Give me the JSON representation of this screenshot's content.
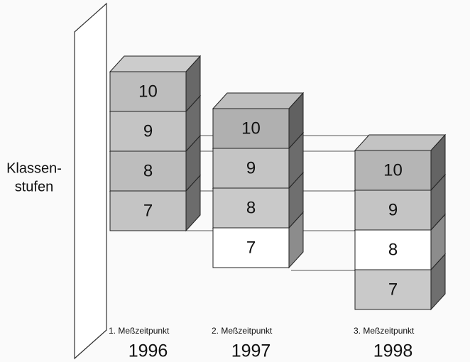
{
  "axis_label": [
    "Klassen-",
    "stufen"
  ],
  "columns": [
    {
      "label": "1. Meßzeitpunkt",
      "year": "1996",
      "cells": [
        {
          "text": "10",
          "color": "#bdbdbd"
        },
        {
          "text": "9",
          "color": "#c4c4c4"
        },
        {
          "text": "8",
          "color": "#bdbdbd"
        },
        {
          "text": "7",
          "color": "#c4c4c4"
        }
      ]
    },
    {
      "label": "2. Meßzeitpunkt",
      "year": "1997",
      "cells": [
        {
          "text": "10",
          "color": "#b0b0b0"
        },
        {
          "text": "9",
          "color": "#c4c4c4"
        },
        {
          "text": "8",
          "color": "#c9c9c9"
        },
        {
          "text": "7",
          "color": "#ffffff"
        }
      ]
    },
    {
      "label": "3. Meßzeitpunkt",
      "year": "1998",
      "cells": [
        {
          "text": "10",
          "color": "#b5b5b5"
        },
        {
          "text": "9",
          "color": "#c4c4c4"
        },
        {
          "text": "8",
          "color": "#ffffff"
        },
        {
          "text": "7",
          "color": "#c9c9c9"
        }
      ]
    }
  ]
}
